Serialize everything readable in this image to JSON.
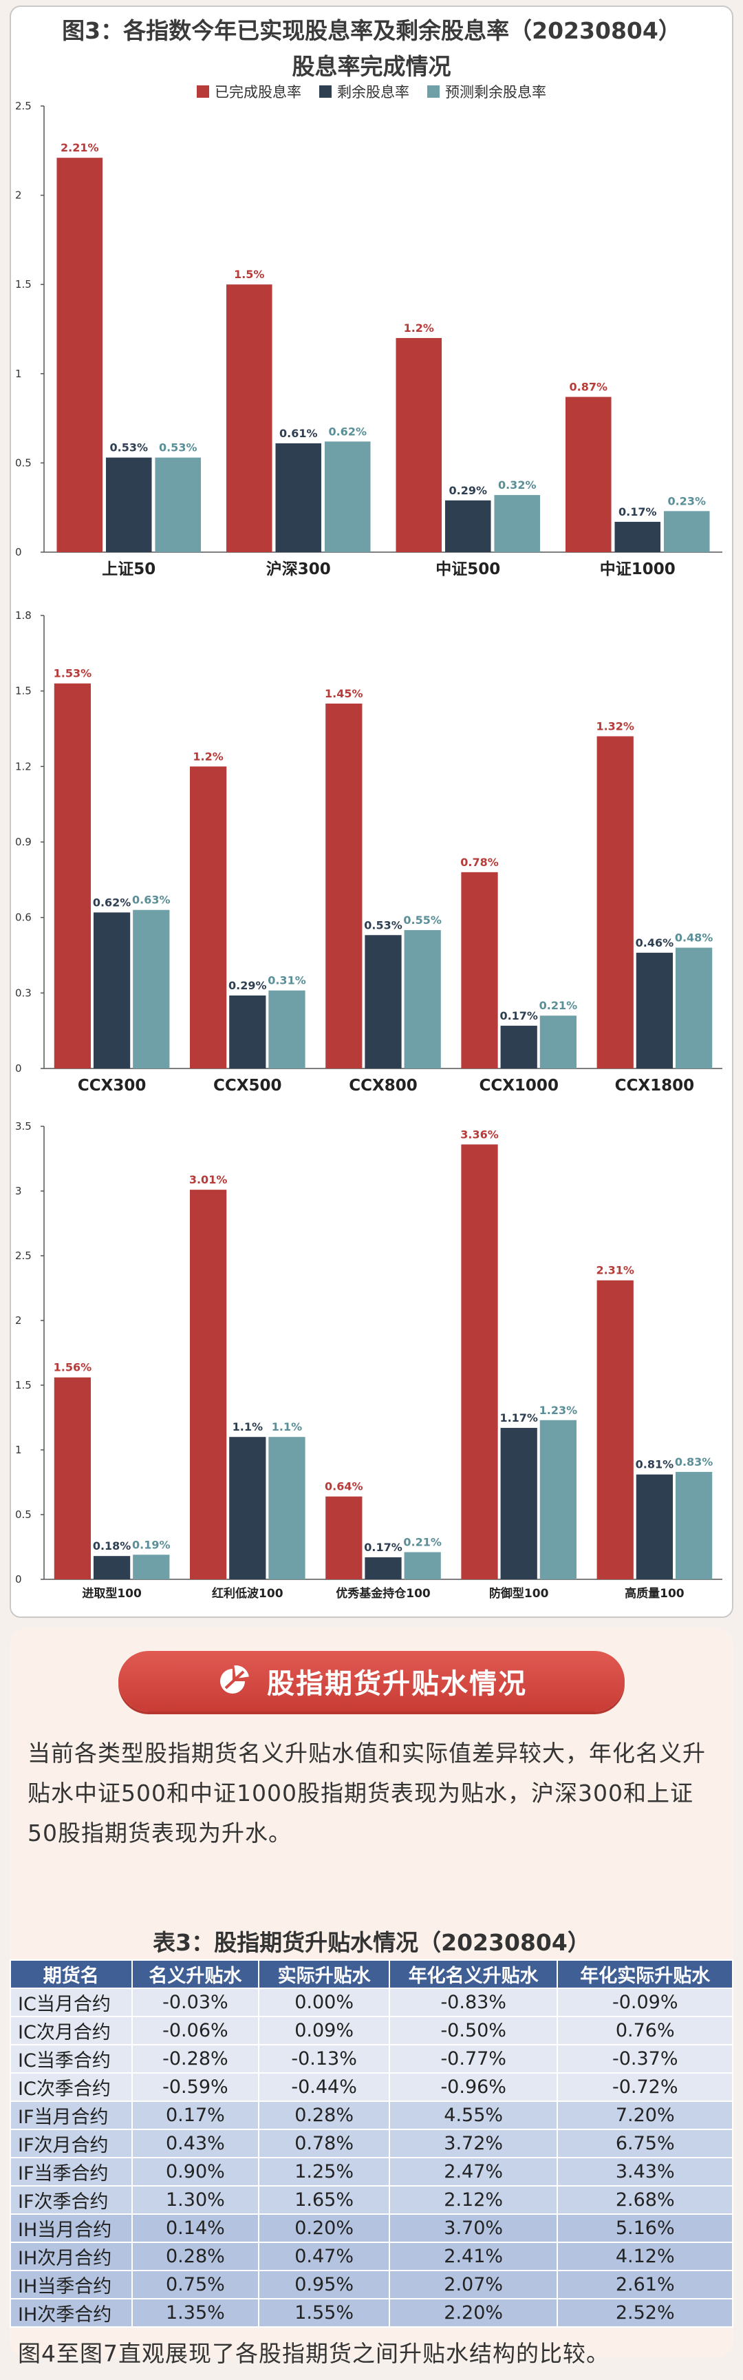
{
  "figure": {
    "title": "图3：各指数今年已实现股息率及剩余股息率（20230804）",
    "subtitle": "股息率完成情况",
    "legend": [
      "已完成股息率",
      "剩余股息率",
      "预测剩余股息率"
    ],
    "colors": [
      "#b73b38",
      "#2f3f52",
      "#6fa0a8"
    ]
  },
  "chart_data": [
    {
      "type": "bar",
      "categories": [
        "上证50",
        "沪深300",
        "中证500",
        "中证1000"
      ],
      "series": [
        {
          "name": "已完成股息率",
          "values": [
            2.21,
            1.5,
            1.2,
            0.87
          ],
          "labels": [
            "2.21%",
            "1.5%",
            "1.2%",
            "0.87%"
          ]
        },
        {
          "name": "剩余股息率",
          "values": [
            0.53,
            0.61,
            0.29,
            0.17
          ],
          "labels": [
            "0.53%",
            "0.61%",
            "0.29%",
            "0.17%"
          ]
        },
        {
          "name": "预测剩余股息率",
          "values": [
            0.53,
            0.62,
            0.32,
            0.23
          ],
          "labels": [
            "0.53%",
            "0.62%",
            "0.32%",
            "0.23%"
          ]
        }
      ],
      "ylim": [
        0,
        2.5
      ],
      "yticks": [
        "0",
        "0.5",
        "1",
        "1.5",
        "2",
        "2.5"
      ]
    },
    {
      "type": "bar",
      "categories": [
        "CCX300",
        "CCX500",
        "CCX800",
        "CCX1000",
        "CCX1800"
      ],
      "series": [
        {
          "name": "已完成股息率",
          "values": [
            1.53,
            1.2,
            1.45,
            0.78,
            1.32
          ],
          "labels": [
            "1.53%",
            "1.2%",
            "1.45%",
            "0.78%",
            "1.32%"
          ]
        },
        {
          "name": "剩余股息率",
          "values": [
            0.62,
            0.29,
            0.53,
            0.17,
            0.46
          ],
          "labels": [
            "0.62%",
            "0.29%",
            "0.53%",
            "0.17%",
            "0.46%"
          ]
        },
        {
          "name": "预测剩余股息率",
          "values": [
            0.63,
            0.31,
            0.55,
            0.21,
            0.48
          ],
          "labels": [
            "0.63%",
            "0.31%",
            "0.55%",
            "0.21%",
            "0.48%"
          ]
        }
      ],
      "ylim": [
        0,
        1.8
      ],
      "yticks": [
        "0",
        "0.3",
        "0.6",
        "0.9",
        "1.2",
        "1.5",
        "1.8"
      ]
    },
    {
      "type": "bar",
      "categories": [
        "进取型100",
        "红利低波100",
        "优秀基金持仓100",
        "防御型100",
        "高质量100"
      ],
      "series": [
        {
          "name": "已完成股息率",
          "values": [
            1.56,
            3.01,
            0.64,
            3.36,
            2.31
          ],
          "labels": [
            "1.56%",
            "3.01%",
            "0.64%",
            "3.36%",
            "2.31%"
          ]
        },
        {
          "name": "剩余股息率",
          "values": [
            0.18,
            1.1,
            0.17,
            1.17,
            0.81
          ],
          "labels": [
            "0.18%",
            "1.1%",
            "0.17%",
            "1.17%",
            "0.81%"
          ]
        },
        {
          "name": "预测剩余股息率",
          "values": [
            0.19,
            1.1,
            0.21,
            1.23,
            0.83
          ],
          "labels": [
            "0.19%",
            "1.1%",
            "0.21%",
            "1.23%",
            "0.83%"
          ]
        }
      ],
      "ylim": [
        0,
        3.5
      ],
      "yticks": [
        "0",
        "0.5",
        "1",
        "1.5",
        "2",
        "2.5",
        "3",
        "3.5"
      ]
    }
  ],
  "section": {
    "banner_title": "股指期货升贴水情况",
    "banner_icon": "pie-chart-icon",
    "intro": "当前各类型股指期货名义升贴水值和实际值差异较大，年化名义升贴水中证500和中证1000股指期货表现为贴水，沪深300和上证50股指期货表现为升水。"
  },
  "table": {
    "title": "表3：股指期货升贴水情况（20230804）",
    "headers": [
      "期货名",
      "名义升贴水",
      "实际升贴水",
      "年化名义升贴水",
      "年化实际升贴水"
    ],
    "rows": [
      [
        "IC当月合约",
        "-0.03%",
        "0.00%",
        "-0.83%",
        "-0.09%"
      ],
      [
        "IC次月合约",
        "-0.06%",
        "0.09%",
        "-0.50%",
        "0.76%"
      ],
      [
        "IC当季合约",
        "-0.28%",
        "-0.13%",
        "-0.77%",
        "-0.37%"
      ],
      [
        "IC次季合约",
        "-0.59%",
        "-0.44%",
        "-0.96%",
        "-0.72%"
      ],
      [
        "IF当月合约",
        "0.17%",
        "0.28%",
        "4.55%",
        "7.20%"
      ],
      [
        "IF次月合约",
        "0.43%",
        "0.78%",
        "3.72%",
        "6.75%"
      ],
      [
        "IF当季合约",
        "0.90%",
        "1.25%",
        "2.47%",
        "3.43%"
      ],
      [
        "IF次季合约",
        "1.30%",
        "1.65%",
        "2.12%",
        "2.68%"
      ],
      [
        "IH当月合约",
        "0.14%",
        "0.20%",
        "3.70%",
        "5.16%"
      ],
      [
        "IH次月合约",
        "0.28%",
        "0.47%",
        "2.41%",
        "4.12%"
      ],
      [
        "IH当季合约",
        "0.75%",
        "0.95%",
        "2.07%",
        "2.61%"
      ],
      [
        "IH次季合约",
        "1.35%",
        "1.55%",
        "2.20%",
        "2.52%"
      ]
    ]
  },
  "footnote": "图4至图7直观展现了各股指期货之间升贴水结构的比较。"
}
